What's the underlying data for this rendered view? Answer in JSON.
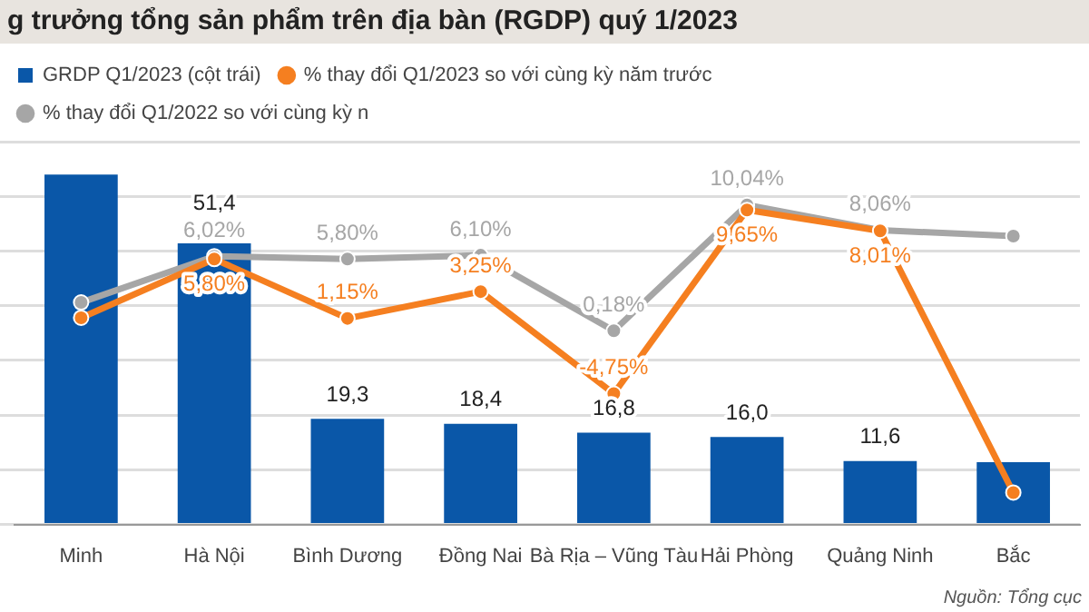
{
  "chart_data": {
    "type": "bar",
    "title": "g trưởng tổng sản phẩm trên địa bàn (RGDP) quý 1/2023",
    "categories": [
      "Minh",
      "Hà Nội",
      "Bình Dương",
      "Đồng Nai",
      "Bà Rịa – Vũng Tàu",
      "Hải Phòng",
      "Quảng Ninh",
      "Bắc"
    ],
    "series": [
      {
        "name": "GRDP Q1/2023 (cột trái)",
        "color": "#0a57a8",
        "values": [
          64,
          51.4,
          19.3,
          18.4,
          16.8,
          16.0,
          11.6,
          11.4
        ],
        "value_labels": [
          null,
          "51,4",
          "19,3",
          "18,4",
          "16,8",
          "16,0",
          "11,6",
          null
        ]
      },
      {
        "name": "% thay đổi Q1/2023 so với cùng kỳ năm trước",
        "type": "line",
        "axis": "y2",
        "color": "#f57f20",
        "values": [
          1.2,
          5.8,
          1.15,
          3.25,
          -4.75,
          9.65,
          8.01,
          -12.5
        ],
        "value_labels": [
          null,
          "5,80%",
          "1,15%",
          "3,25%",
          "-4,75%",
          "9,65%",
          "8,01%",
          null
        ]
      },
      {
        "name": "% thay đổi Q1/2022 so với cùng kỳ n",
        "type": "line",
        "axis": "y2",
        "color": "#a6a6a6",
        "values": [
          2.4,
          6.02,
          5.8,
          6.1,
          0.18,
          10.04,
          8.06,
          7.6
        ],
        "value_labels": [
          null,
          "6,02%",
          "5,80%",
          "6,10%",
          "0,18%",
          "10,04%",
          "8,06%",
          null
        ]
      }
    ],
    "tick_labels": "x",
    "grid": "y",
    "legend": "top",
    "marker": "circle",
    "annotations": [
      "Nguồn: Tổng cục"
    ]
  }
}
